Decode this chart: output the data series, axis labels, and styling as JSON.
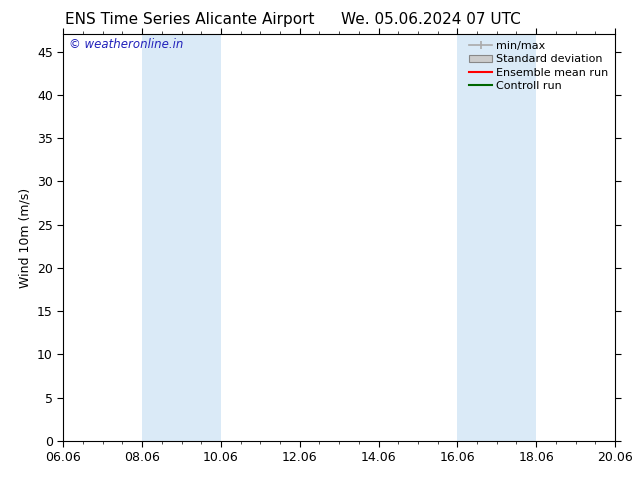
{
  "title_left": "ENS Time Series Alicante Airport",
  "title_right": "We. 05.06.2024 07 UTC",
  "ylabel": "Wind 10m (m/s)",
  "ylim": [
    0,
    47
  ],
  "yticks": [
    0,
    5,
    10,
    15,
    20,
    25,
    30,
    35,
    40,
    45
  ],
  "xtick_labels": [
    "06.06",
    "08.06",
    "10.06",
    "12.06",
    "14.06",
    "16.06",
    "18.06",
    "20.06"
  ],
  "xtick_positions": [
    0,
    2,
    4,
    6,
    8,
    10,
    12,
    14
  ],
  "xlim": [
    0,
    14
  ],
  "shaded_bands": [
    {
      "x_start": 2.0,
      "x_end": 4.0
    },
    {
      "x_start": 10.0,
      "x_end": 12.0
    }
  ],
  "shaded_color": "#daeaf7",
  "background_color": "#ffffff",
  "watermark_text": "© weatheronline.in",
  "watermark_color": "#2222bb",
  "watermark_fontsize": 8.5,
  "legend_minmax_color": "#aaaaaa",
  "legend_std_facecolor": "#cccccc",
  "legend_std_edgecolor": "#888888",
  "legend_ens_color": "#ff0000",
  "legend_ctrl_color": "#006600",
  "title_fontsize": 11,
  "ylabel_fontsize": 9,
  "tick_fontsize": 9,
  "legend_fontsize": 8
}
